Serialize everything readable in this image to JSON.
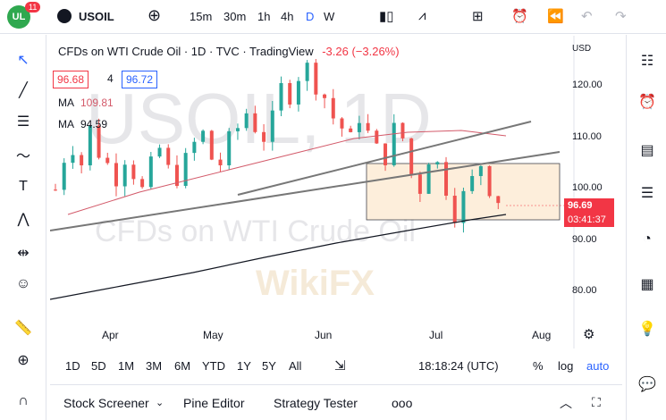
{
  "header": {
    "badge": "11",
    "symbol": "USOIL",
    "timeframes": [
      "15m",
      "30m",
      "1h",
      "4h",
      "D",
      "W"
    ],
    "active_tf": "D"
  },
  "legend": {
    "title": "CFDs on WTI Crude Oil · 1D · TVC · TradingView",
    "change": "-3.26 (−3.26%)",
    "bid": "96.68",
    "spread": "4",
    "ask": "96.72"
  },
  "ma": [
    {
      "label": "MA",
      "value": "109.81",
      "color": "#e06070"
    },
    {
      "label": "MA",
      "value": "94.59",
      "color": "#131722"
    }
  ],
  "watermark": {
    "big": "USOIL, 1D",
    "small": "CFDs on WTI Crude Oil",
    "brand": "WikiFX"
  },
  "yaxis": {
    "currency": "USD",
    "ticks": [
      "120.00",
      "110.00",
      "100.00",
      "90.00",
      "80.00"
    ]
  },
  "price_tag": {
    "price": "96.69",
    "countdown": "03:41:37"
  },
  "xaxis": [
    "Apr",
    "May",
    "Jun",
    "Jul",
    "Aug"
  ],
  "ranges": [
    "1D",
    "5D",
    "1M",
    "3M",
    "6M",
    "YTD",
    "1Y",
    "5Y",
    "All"
  ],
  "clock": "18:18:24 (UTC)",
  "scale": {
    "percent": "%",
    "log": "log",
    "auto": "auto"
  },
  "tabs": [
    "Stock Screener",
    "Pine Editor",
    "Strategy Tester"
  ],
  "more": "ooo"
}
